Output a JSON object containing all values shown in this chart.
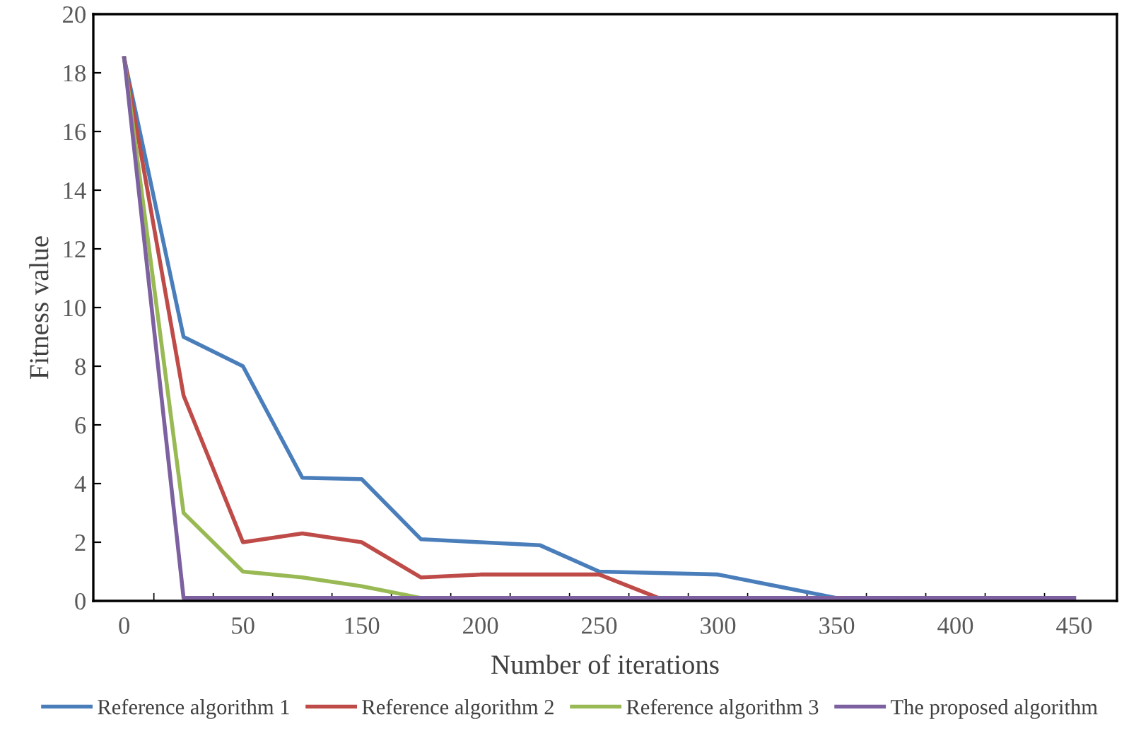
{
  "chart_data": {
    "type": "line",
    "xlabel": "Number of iterations",
    "ylabel": "Fitness value",
    "categories": [
      "0",
      null,
      "50",
      null,
      "150",
      null,
      "200",
      null,
      "250",
      null,
      "300",
      null,
      "350",
      null,
      "400",
      null,
      "450"
    ],
    "series": [
      {
        "name": "Reference algorithm 1",
        "color": "#4a7ebb",
        "values": [
          18.5,
          9.0,
          8.0,
          4.2,
          4.15,
          2.1,
          2.0,
          1.9,
          1.0,
          0.95,
          0.9,
          0.5,
          0.1,
          0.1,
          null,
          null,
          null
        ]
      },
      {
        "name": "Reference algorithm 2",
        "color": "#be4b48",
        "values": [
          18.5,
          7.0,
          2.0,
          2.3,
          2.0,
          0.8,
          0.9,
          0.9,
          0.9,
          0.1,
          0.1,
          null,
          null,
          null,
          null,
          null,
          null
        ]
      },
      {
        "name": "Reference algorithm 3",
        "color": "#98b954",
        "values": [
          18.5,
          3.0,
          1.0,
          0.8,
          0.5,
          0.1,
          null,
          null,
          null,
          null,
          null,
          null,
          null,
          null,
          null,
          null,
          null
        ]
      },
      {
        "name": "The proposed algorithm",
        "color": "#7d60a0",
        "values": [
          18.5,
          0.1,
          0.1,
          0.1,
          0.1,
          0.1,
          0.1,
          0.1,
          0.1,
          0.1,
          0.1,
          0.1,
          0.1,
          0.1,
          0.1,
          0.1,
          0.1
        ]
      }
    ],
    "ylim": [
      0,
      20
    ],
    "yticks": [
      0,
      2,
      4,
      6,
      8,
      10,
      12,
      14,
      16,
      18,
      20
    ],
    "grid": false,
    "legend": "bottom",
    "marker": "none",
    "line_style": "solid"
  }
}
